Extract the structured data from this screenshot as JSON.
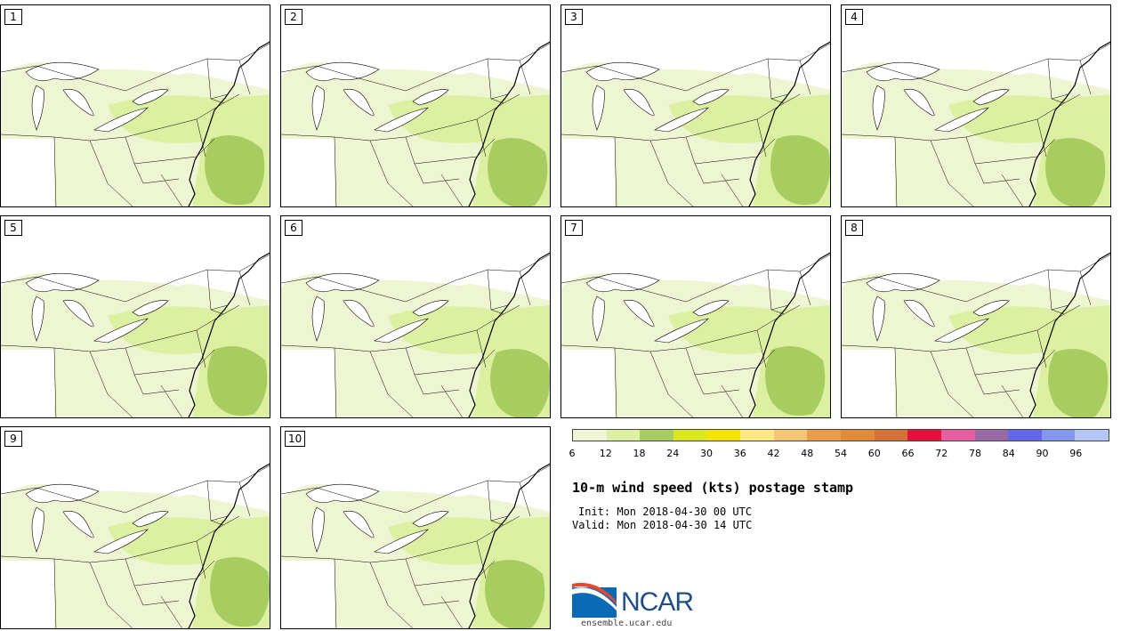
{
  "figure": {
    "title": "10-m wind speed (kts) postage stamp",
    "init": "Init: Mon 2018-04-30 00 UTC",
    "valid": "Valid: Mon 2018-04-30 14 UTC",
    "site": "ensemble.ucar.edu",
    "logo_text": "NCAR"
  },
  "members": [
    "1",
    "2",
    "3",
    "4",
    "5",
    "6",
    "7",
    "8",
    "9",
    "10"
  ],
  "colorbar": {
    "ticks": [
      "6",
      "12",
      "18",
      "24",
      "30",
      "36",
      "42",
      "48",
      "54",
      "60",
      "66",
      "72",
      "78",
      "84",
      "90",
      "96"
    ],
    "colors": [
      "#eef5d2",
      "#ddf0a2",
      "#a7cd61",
      "#dbe81d",
      "#f5e400",
      "#fce885",
      "#f3c777",
      "#ea9e4c",
      "#e08a3a",
      "#d27236",
      "#e8103a",
      "#e65fa0",
      "#9a6aa6",
      "#6367ec",
      "#8397f1",
      "#b5c7f7"
    ]
  },
  "colors": {
    "light": "#eef5d2",
    "mid": "#ddf0a2",
    "strong": "#a7cd61"
  }
}
